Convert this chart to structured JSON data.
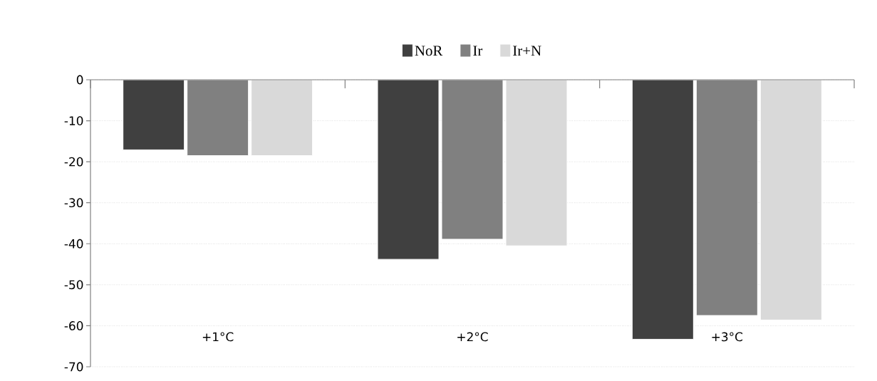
{
  "chart_data": {
    "type": "bar",
    "categories": [
      "+1°C",
      "+2°C",
      "+3°C"
    ],
    "series": [
      {
        "name": "NoR",
        "color": "#404040",
        "values": [
          -17.1,
          -43.8,
          -63.3
        ]
      },
      {
        "name": "Ir",
        "color": "#808080",
        "values": [
          -18.5,
          -38.9,
          -57.5
        ]
      },
      {
        "name": "Ir+N",
        "color": "#d9d9d9",
        "values": [
          -18.5,
          -40.5,
          -58.6
        ]
      }
    ],
    "ylim": [
      -70,
      0
    ],
    "yticks": [
      -70,
      -60,
      -50,
      -40,
      -30,
      -20,
      -10,
      0
    ],
    "grid": "y",
    "legend": "top"
  }
}
